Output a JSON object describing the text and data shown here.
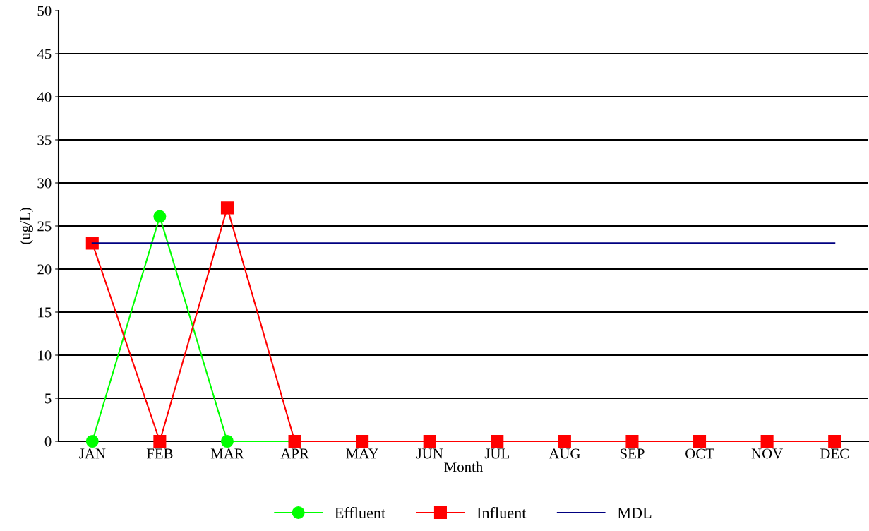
{
  "chart_data": {
    "type": "line",
    "xlabel": "Month",
    "ylabel": "(ug/L)",
    "categories": [
      "JAN",
      "FEB",
      "MAR",
      "APR",
      "MAY",
      "JUN",
      "JUL",
      "AUG",
      "SEP",
      "OCT",
      "NOV",
      "DEC"
    ],
    "series": [
      {
        "name": "Effluent",
        "color": "#00ff00",
        "marker": "circle",
        "values": [
          0,
          26.1,
          0,
          0,
          null,
          null,
          null,
          null,
          null,
          null,
          null,
          null
        ]
      },
      {
        "name": "Influent",
        "color": "#ff0000",
        "marker": "square",
        "values": [
          23,
          0,
          27.1,
          0,
          0,
          0,
          0,
          0,
          0,
          0,
          0,
          0
        ]
      },
      {
        "name": "MDL",
        "color": "#000080",
        "marker": "none",
        "values": [
          23,
          23,
          23,
          23,
          23,
          23,
          23,
          23,
          23,
          23,
          23,
          23
        ]
      }
    ],
    "ylim": [
      0,
      50
    ],
    "yticks": [
      0,
      5,
      10,
      15,
      20,
      25,
      30,
      35,
      40,
      45,
      50
    ],
    "grid": "y",
    "legend": "bottom"
  }
}
